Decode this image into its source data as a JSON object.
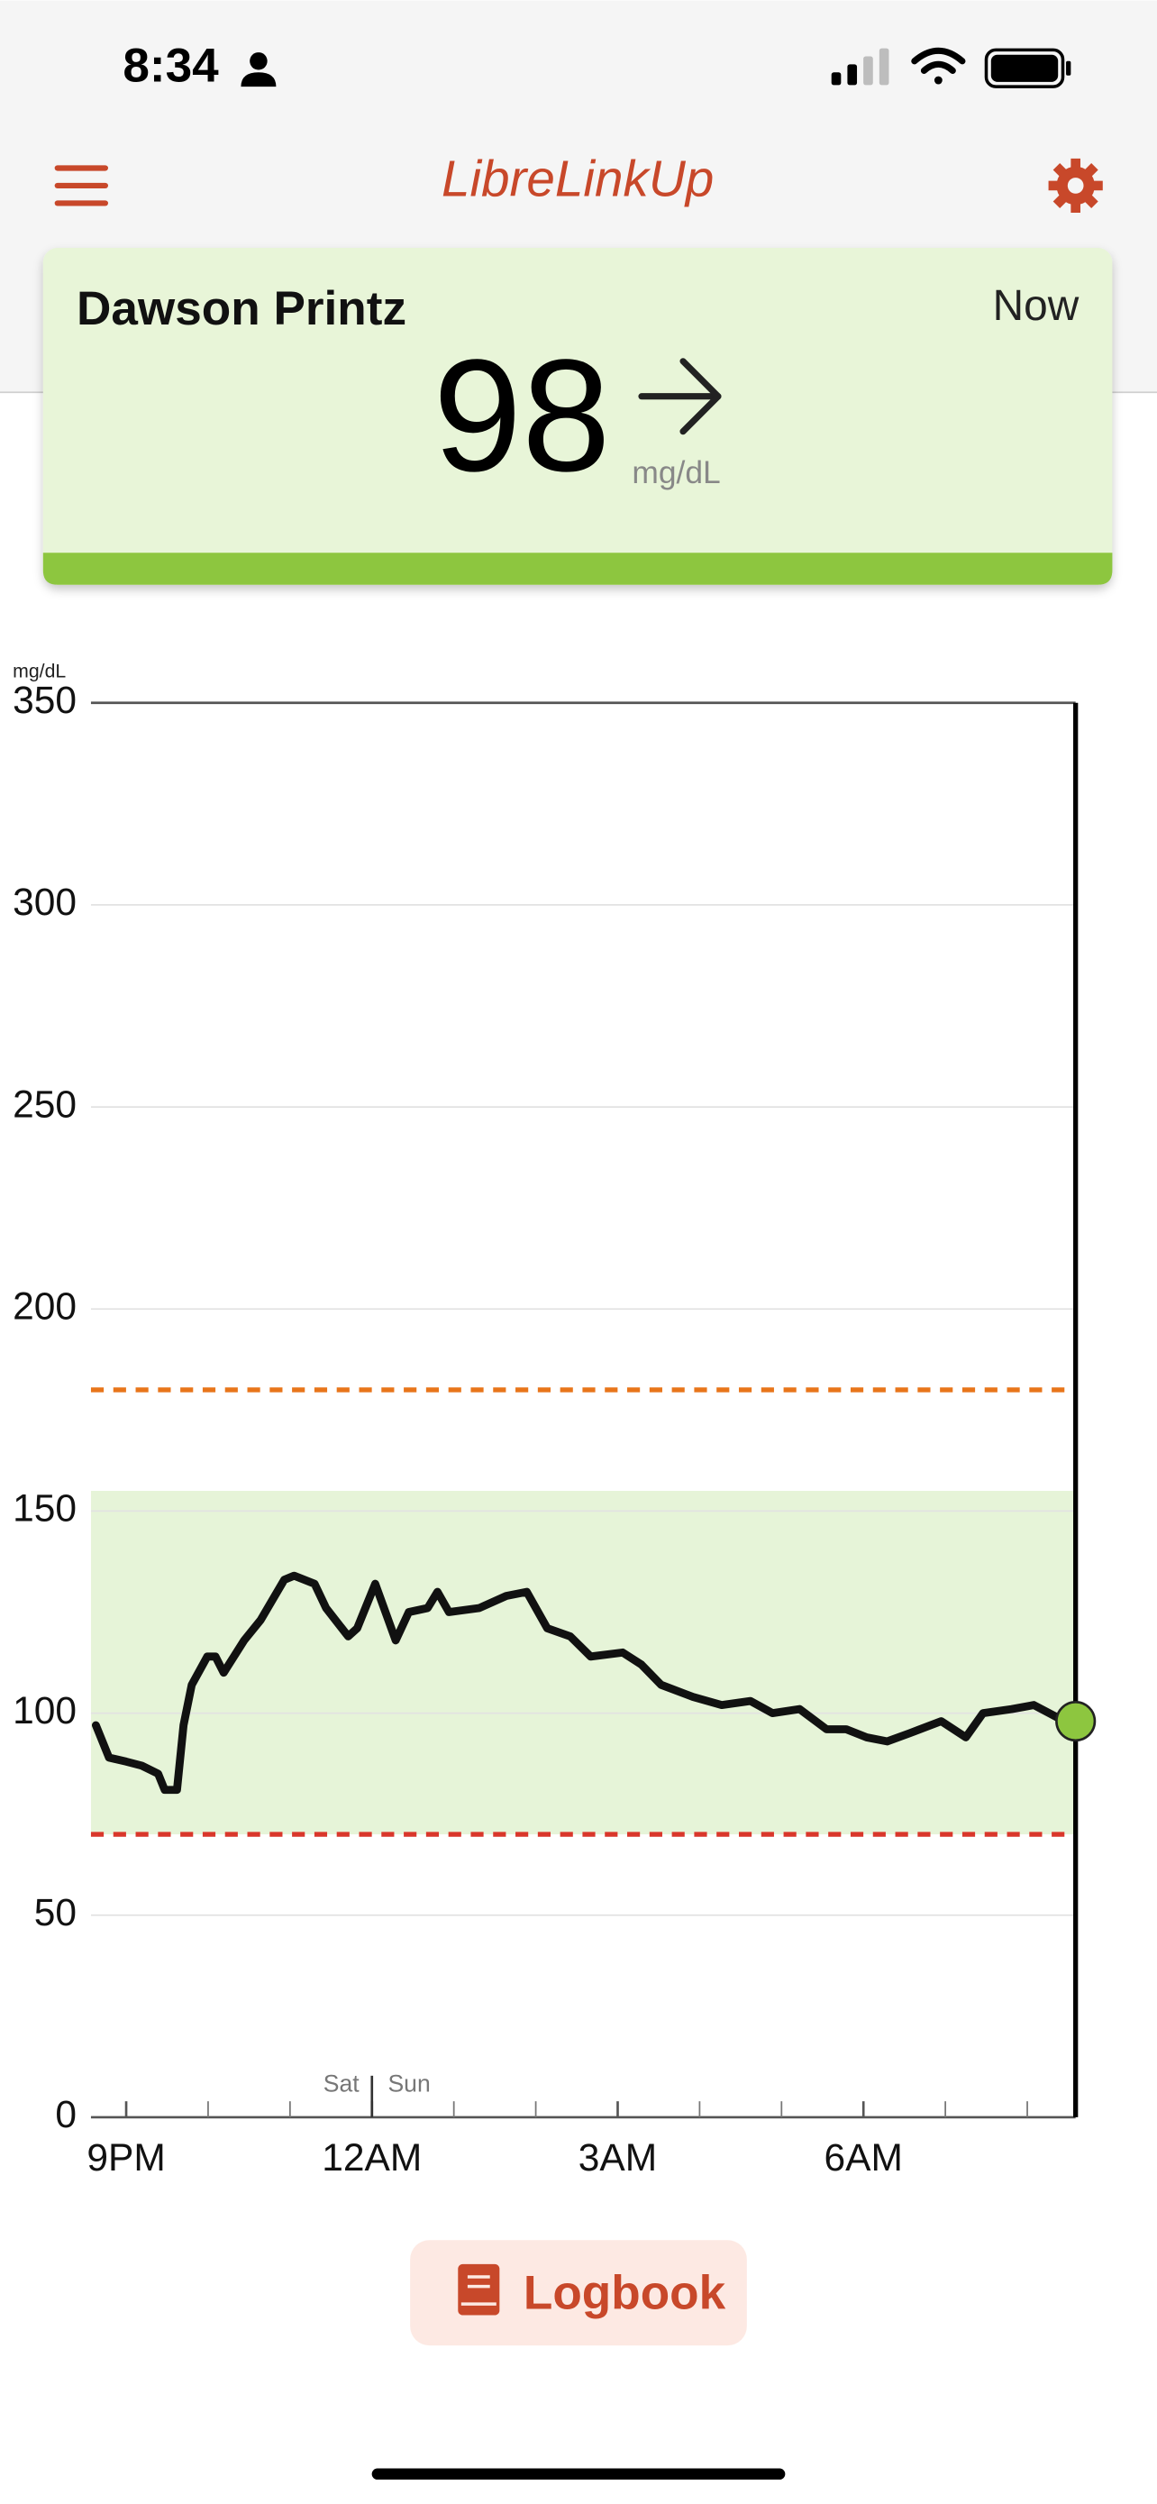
{
  "status_bar": {
    "time": "8:34"
  },
  "header": {
    "title": "LibreLinkUp"
  },
  "patient_card": {
    "name": "Dawson Printz",
    "timestamp": "Now",
    "reading": 98,
    "unit": "mg/dL"
  },
  "chart_data": {
    "type": "line",
    "y_label": "mg/dL",
    "x": [
      20.63,
      20.79,
      21.0,
      21.19,
      21.39,
      21.47,
      21.62,
      21.7,
      21.8,
      21.99,
      22.09,
      22.19,
      22.44,
      22.64,
      22.93,
      23.05,
      23.3,
      23.44,
      23.71,
      23.82,
      24.04,
      24.29,
      24.45,
      24.68,
      24.8,
      24.94,
      25.31,
      25.64,
      25.89,
      26.14,
      26.42,
      26.67,
      27.06,
      27.29,
      27.53,
      27.92,
      28.27,
      28.62,
      28.89,
      29.22,
      29.55,
      29.79,
      30.04,
      30.29,
      30.56,
      30.95,
      31.25,
      31.46,
      31.81,
      32.08,
      32.36,
      32.59
    ],
    "values": [
      97,
      89,
      88,
      87,
      85,
      81,
      81,
      97,
      107,
      114,
      114,
      110,
      118,
      123,
      133,
      134,
      132,
      126,
      119,
      121,
      132,
      118,
      125,
      126,
      130,
      125,
      126,
      129,
      130,
      121,
      119,
      114,
      115,
      112,
      107,
      104,
      102,
      103,
      100,
      101,
      96,
      96,
      94,
      93,
      95,
      98,
      94,
      100,
      101,
      102,
      99,
      98
    ],
    "color": "#111111",
    "xlim": [
      20.57,
      32.59
    ],
    "xticks": [
      {
        "value": 21,
        "label": "9PM"
      },
      {
        "value": 24,
        "label": "12AM"
      },
      {
        "value": 27,
        "label": "3AM"
      },
      {
        "value": 30,
        "label": "6AM"
      }
    ],
    "x_minor_ticks": [
      22,
      23,
      25,
      26,
      28,
      29,
      31,
      32
    ],
    "day_divider": {
      "value": 24,
      "before": "Sat",
      "after": "Sun"
    },
    "ylim": [
      0,
      350
    ],
    "yticks": [
      0,
      50,
      100,
      150,
      200,
      250,
      300,
      350
    ],
    "grid": true,
    "target_range": [
      70,
      155
    ],
    "target_color": "#e6f4d8",
    "high_threshold": 180,
    "high_color": "#e8751a",
    "low_threshold": 70,
    "low_color": "#d9372b",
    "current_marker_color": "#8dc63f"
  },
  "logbook_button": {
    "label": "Logbook"
  }
}
